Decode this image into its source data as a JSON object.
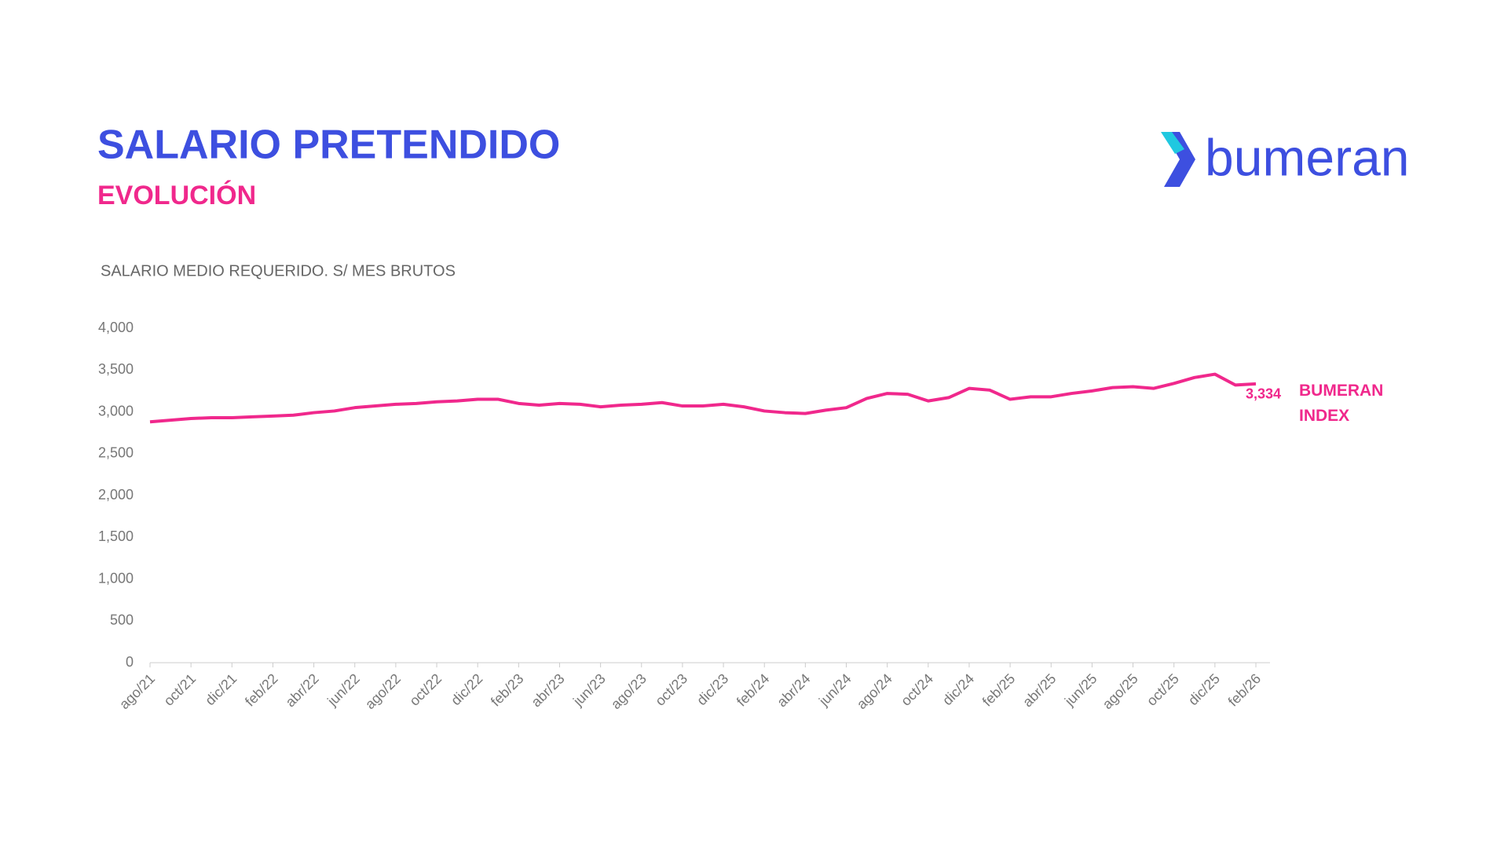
{
  "header": {
    "title": "SALARIO PRETENDIDO",
    "subtitle": "EVOLUCIÓN",
    "logo": "bumeran"
  },
  "chart_data": {
    "type": "line",
    "y_label": "SALARIO MEDIO REQUERIDO. S/ MES BRUTOS",
    "categories": [
      "ago/21",
      null,
      "oct/21",
      null,
      "dic/21",
      null,
      "feb/22",
      null,
      "abr/22",
      null,
      "jun/22",
      null,
      "ago/22",
      null,
      "oct/22",
      null,
      "dic/22",
      null,
      "feb/23",
      null,
      "abr/23",
      null,
      "jun/23",
      null,
      "ago/23",
      null,
      "oct/23",
      null,
      "dic/23",
      null,
      "feb/24",
      null,
      "abr/24",
      null,
      "jun/24",
      null,
      "ago/24",
      null,
      "oct/24",
      null,
      "dic/24",
      null,
      "feb/25",
      null,
      "abr/25",
      null,
      "jun/25",
      null,
      "ago/25",
      null,
      "oct/25",
      null,
      "dic/25",
      null,
      "feb/26"
    ],
    "series": [
      {
        "name": "BUMERAN INDEX",
        "color": "#f0288c",
        "values": [
          2880,
          2900,
          2920,
          2930,
          2930,
          2940,
          2950,
          2960,
          2990,
          3010,
          3050,
          3070,
          3090,
          3100,
          3120,
          3130,
          3150,
          3150,
          3100,
          3080,
          3100,
          3090,
          3060,
          3080,
          3090,
          3110,
          3070,
          3070,
          3090,
          3060,
          3010,
          2990,
          2980,
          3020,
          3050,
          3160,
          3220,
          3210,
          3130,
          3170,
          3280,
          3260,
          3150,
          3180,
          3180,
          3220,
          3250,
          3290,
          3300,
          3280,
          3340,
          3410,
          3450,
          3320,
          3334
        ],
        "value_labels": [
          null,
          null,
          null,
          null,
          null,
          null,
          null,
          null,
          null,
          null,
          null,
          null,
          null,
          null,
          null,
          null,
          null,
          null,
          null,
          null,
          null,
          null,
          null,
          null,
          null,
          null,
          null,
          null,
          null,
          null,
          null,
          null,
          null,
          null,
          null,
          null,
          null,
          null,
          null,
          null,
          null,
          null,
          null,
          null,
          null,
          null,
          null,
          null,
          null,
          null,
          null,
          null,
          null,
          null,
          "3,334"
        ]
      }
    ],
    "ylim": [
      0,
      4000
    ],
    "yticks": [
      0,
      500,
      {
        "value": 1000,
        "label": "1,000"
      },
      {
        "value": 1500,
        "label": "1,500"
      },
      {
        "value": 2000,
        "label": "2,000"
      },
      {
        "value": 2500,
        "label": "2,500"
      },
      {
        "value": 3000,
        "label": "3,000"
      },
      {
        "value": 3500,
        "label": "3,500"
      },
      {
        "value": 4000,
        "label": "4,000"
      }
    ],
    "grid": false
  }
}
